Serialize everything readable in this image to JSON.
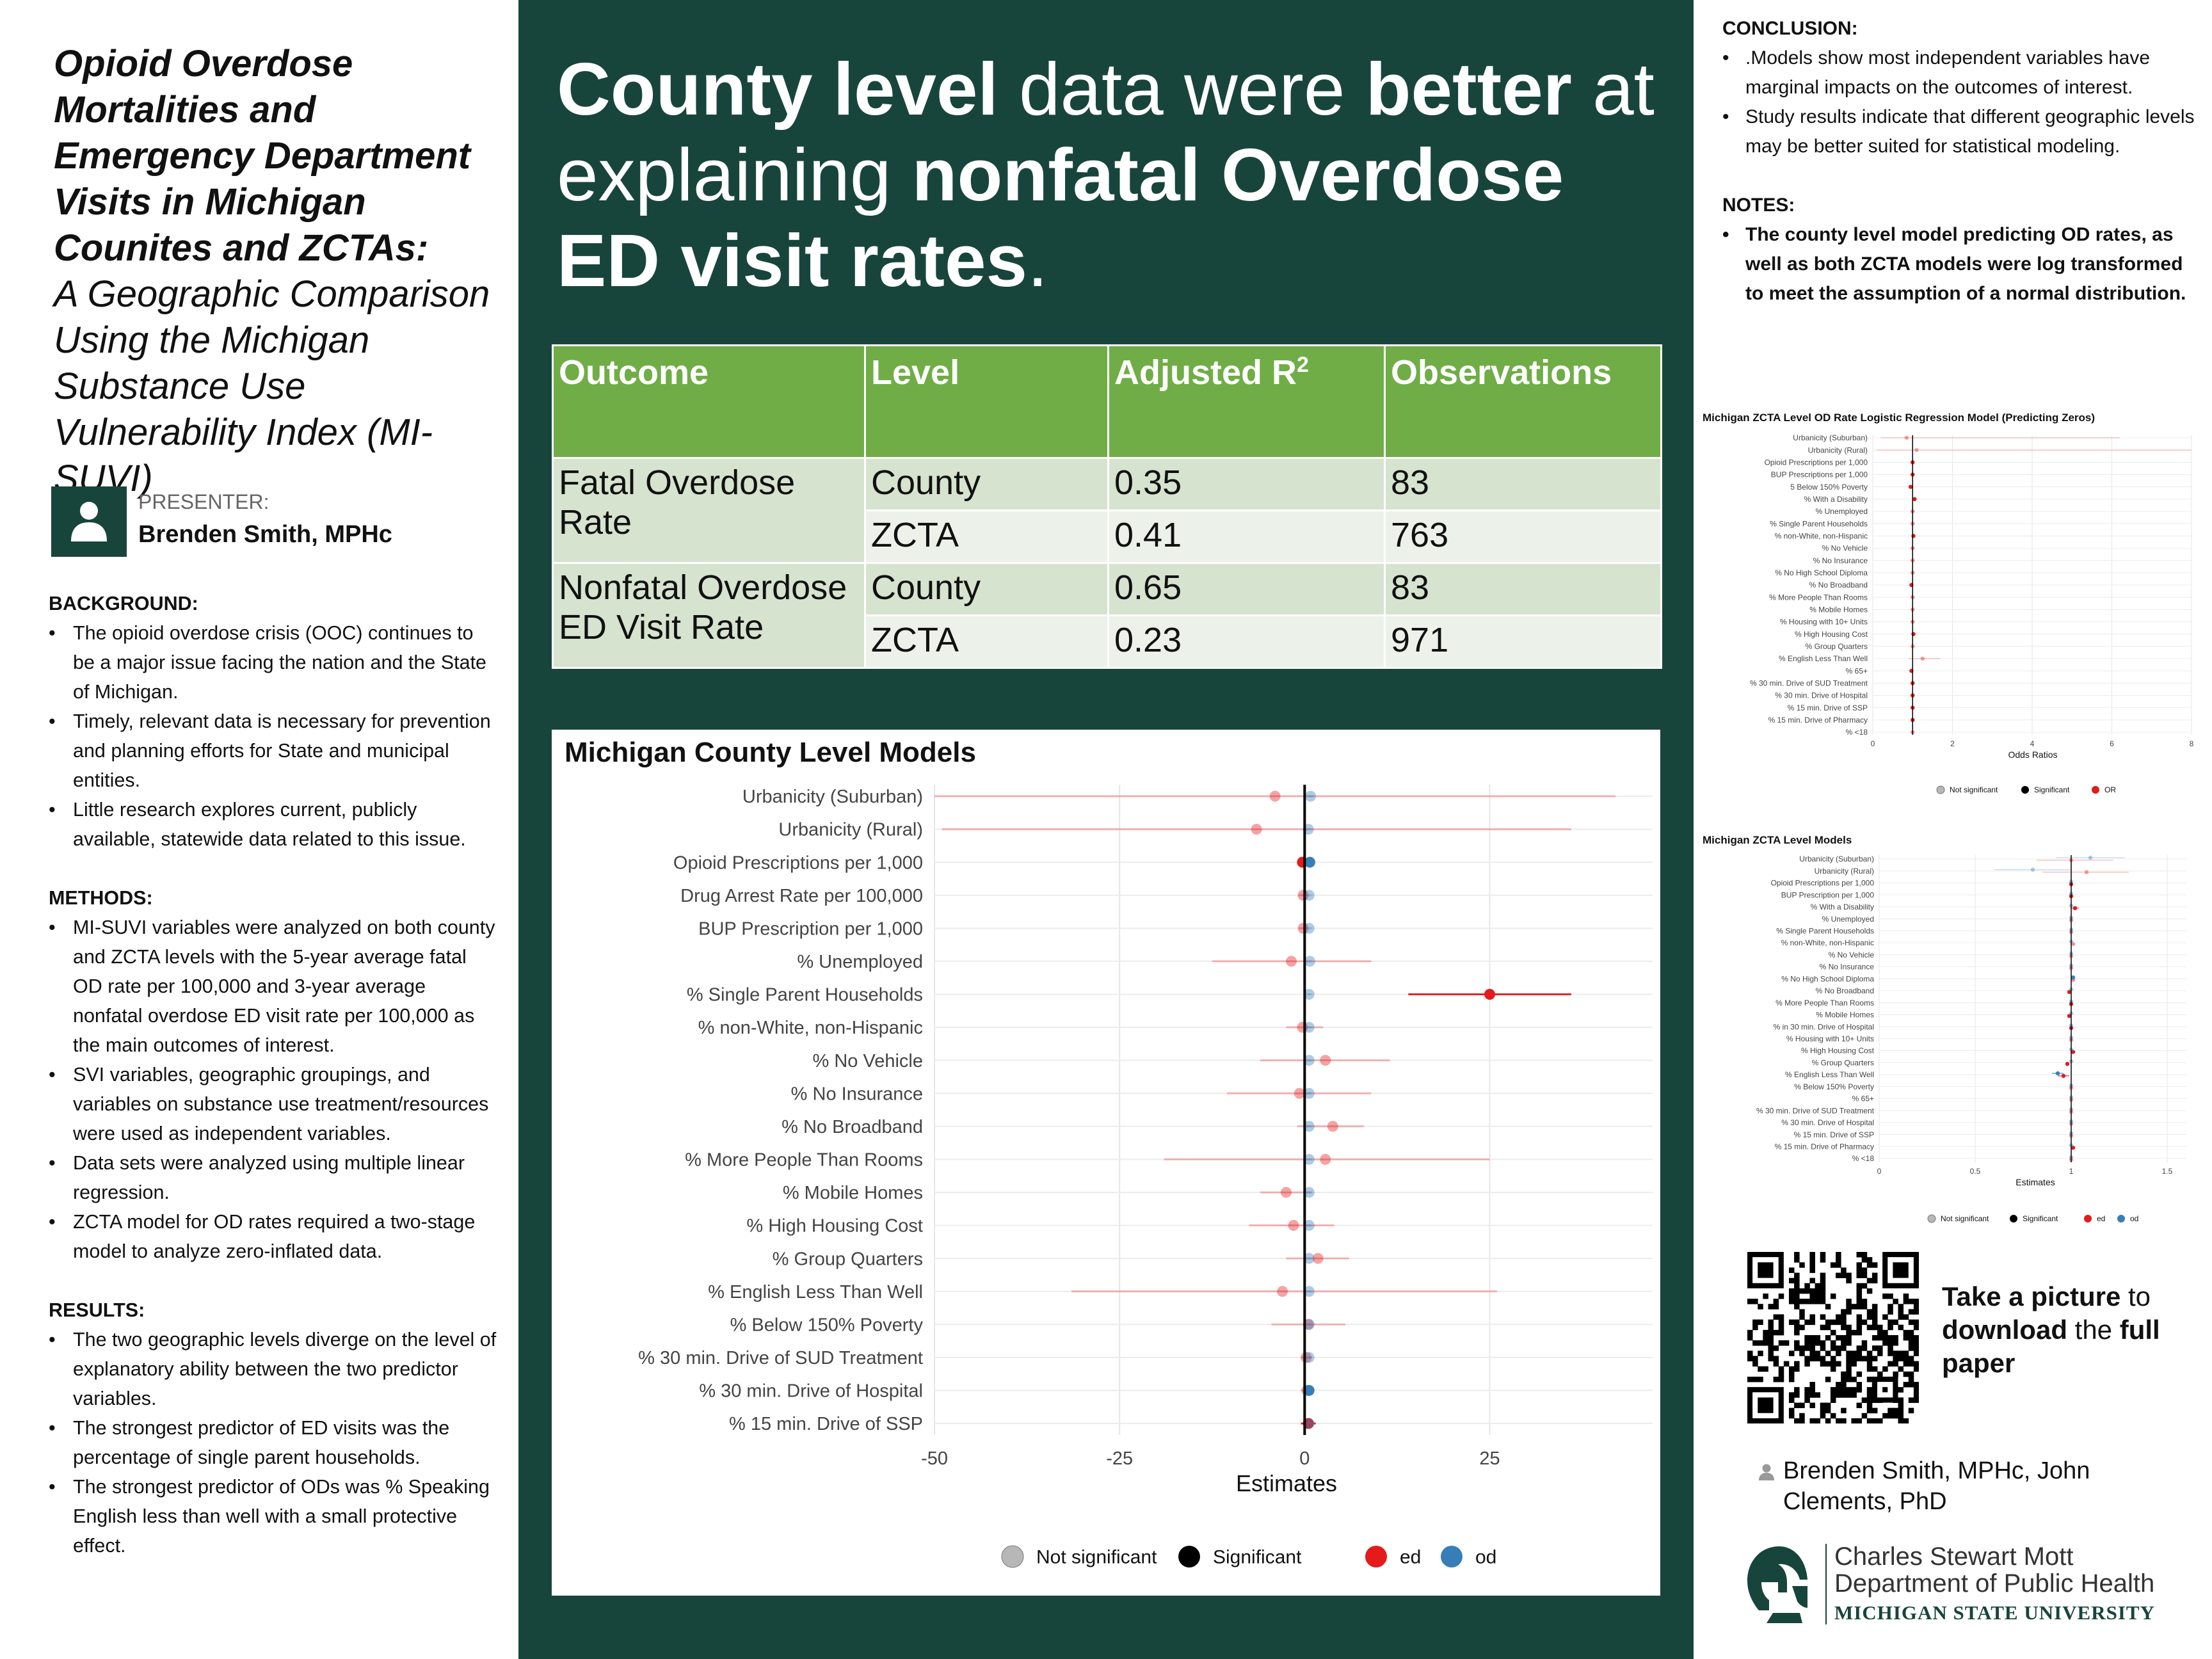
{
  "left": {
    "title_bold": "Opioid Overdose Mortalities and Emergency Department Visits in Michigan Counites and ZCTAs:",
    "title_sub": "A Geographic Comparison Using the Michigan Substance Use Vulnerability Index (MI-SUVI)",
    "presenter_label": "PRESENTER:",
    "presenter_name": "Brenden Smith, MPHc",
    "sections": [
      {
        "heading": "BACKGROUND:",
        "items": [
          "The opioid overdose crisis (OOC) continues to be a major issue facing the nation and the State of Michigan.",
          "Timely, relevant data is necessary for prevention and planning efforts for State and municipal entities.",
          "Little research explores current, publicly available, statewide data related to this issue."
        ]
      },
      {
        "heading": "METHODS:",
        "items": [
          "MI-SUVI variables were analyzed on both county and ZCTA levels with the 5-year average fatal OD rate per 100,000 and 3-year average nonfatal overdose ED visit rate per 100,000 as the main outcomes of interest.",
          "SVI variables, geographic groupings, and variables on substance use treatment/resources were used as independent variables.",
          "Data sets were analyzed using multiple linear regression.",
          "ZCTA model for OD rates required a two-stage model to analyze zero-inflated data."
        ]
      },
      {
        "heading": "RESULTS:",
        "items": [
          "The two geographic levels diverge on the level of explanatory ability between the two predictor variables.",
          "The strongest predictor of ED visits was the percentage of single parent households.",
          "The strongest predictor of ODs was % Speaking English less than well with a small protective effect."
        ]
      }
    ]
  },
  "middle": {
    "headline_parts": [
      {
        "text": "County level",
        "bold": true
      },
      {
        "text": " data were ",
        "bold": false
      },
      {
        "text": "better",
        "bold": true
      },
      {
        "text": " at explaining ",
        "bold": false
      },
      {
        "text": "nonfatal Overdose ED visit rates",
        "bold": true
      },
      {
        "text": ".",
        "bold": false
      }
    ],
    "table": {
      "headers": [
        "Outcome",
        "Level",
        "Adjusted R",
        "Observations"
      ],
      "r2_sup": "2",
      "groups": [
        {
          "outcome": "Fatal Overdose Rate",
          "rows": [
            [
              "County",
              "0.35",
              "83"
            ],
            [
              "ZCTA",
              "0.41",
              "763"
            ]
          ]
        },
        {
          "outcome": "Nonfatal Overdose ED Visit Rate",
          "rows": [
            [
              "County",
              "0.65",
              "83"
            ],
            [
              "ZCTA",
              "0.23",
              "971"
            ]
          ]
        }
      ]
    }
  },
  "right": {
    "conclusion_heading": "CONCLUSION:",
    "conclusion_items": [
      ".Models show most independent variables have marginal impacts on the outcomes of interest.",
      "Study results indicate that different geographic levels may be better suited for statistical modeling."
    ],
    "notes_heading": "NOTES:",
    "notes_items": [
      "The county level model predicting OD rates, as well as both ZCTA models were log transformed to meet the assumption of a normal distribution."
    ],
    "qr_text": [
      {
        "text": "Take a picture",
        "bold": true
      },
      {
        "text": " to ",
        "bold": false
      },
      {
        "text": "download",
        "bold": true
      },
      {
        "text": " the ",
        "bold": false
      },
      {
        "text": "full paper",
        "bold": true
      }
    ],
    "authors": "Brenden Smith, MPHc, John Clements, PhD",
    "logo_line1": "Charles Stewart Mott",
    "logo_line2": "Department of Public Health",
    "logo_line3": "MICHIGAN STATE UNIVERSITY"
  },
  "colors": {
    "msu_green": "#18453b",
    "table_header": "#70ad47",
    "ed": "#e41a1c",
    "od": "#377eb8"
  },
  "chart_data": [
    {
      "type": "scatter",
      "subtype": "coefficient-plot",
      "title": "Michigan County Level Models",
      "xlabel": "Estimates",
      "xlim": [
        -50,
        47
      ],
      "xticks": [
        -50,
        -25,
        0,
        25
      ],
      "legend": [
        "Not significant",
        "Significant",
        "ed",
        "od"
      ],
      "legend_position": "bottom",
      "grid": true,
      "categories": [
        "Urbanicity (Suburban)",
        "Urbanicity (Rural)",
        "Opioid Prescriptions per 1,000",
        "Drug Arrest Rate per 100,000",
        "BUP Prescription per 1,000",
        "% Unemployed",
        "% Single Parent Households",
        "% non-White, non-Hispanic",
        "% No Vehicle",
        "% No Insurance",
        "% No Broadband",
        "% More People Than Rooms",
        "% Mobile Homes",
        "% High Housing Cost",
        "% Group Quarters",
        "% English Less Than Well",
        "% Below 150% Poverty",
        "% 30 min. Drive of SUD Treatment",
        "% 30 min. Drive of Hospital",
        "% 15 min. Drive of SSP"
      ],
      "series": [
        {
          "name": "ed",
          "estimates": [
            -4,
            -6.5,
            -0.3,
            -0.2,
            -0.2,
            -1.8,
            25,
            -0.3,
            2.8,
            -0.7,
            3.8,
            2.8,
            -2.5,
            -1.5,
            1.8,
            -3,
            0.5,
            0.2,
            0.3,
            0.5
          ],
          "low": [
            -50,
            -49,
            -0.8,
            -0.8,
            -0.8,
            -12.5,
            14,
            -2.5,
            -6,
            -10.5,
            -1,
            -19,
            -6,
            -7.5,
            -2.5,
            -31.5,
            -4.5,
            -0.5,
            -0.5,
            -0.5
          ],
          "high": [
            42,
            36,
            0.4,
            0.4,
            0.4,
            9,
            36,
            2.5,
            11.5,
            9,
            8,
            25,
            1,
            4,
            6,
            26,
            5.5,
            1,
            1,
            1.5
          ],
          "significant": [
            false,
            false,
            true,
            false,
            false,
            false,
            true,
            false,
            false,
            false,
            false,
            false,
            false,
            false,
            false,
            false,
            false,
            false,
            false,
            true
          ]
        },
        {
          "name": "od",
          "estimates": [
            0.8,
            0.5,
            0.7,
            0.6,
            0.6,
            0.7,
            0.6,
            0.6,
            0.6,
            0.6,
            0.6,
            0.6,
            0.6,
            0.6,
            0.6,
            0.6,
            0.6,
            0.6,
            0.6,
            0.6
          ],
          "low": [
            0.4,
            0.1,
            0.5,
            0.3,
            0.3,
            0.3,
            0.3,
            0.3,
            0.3,
            0.3,
            0.3,
            0.3,
            0.3,
            0.3,
            0.3,
            0.3,
            0.3,
            0.3,
            0.3,
            0.3
          ],
          "high": [
            1.2,
            0.9,
            0.9,
            0.9,
            0.9,
            0.9,
            0.9,
            0.9,
            0.9,
            0.9,
            0.9,
            0.9,
            0.9,
            0.9,
            0.9,
            0.9,
            0.9,
            0.9,
            0.9,
            0.9
          ],
          "significant": [
            false,
            false,
            true,
            false,
            false,
            false,
            false,
            false,
            false,
            false,
            false,
            false,
            false,
            false,
            false,
            false,
            false,
            false,
            true,
            false
          ]
        }
      ]
    },
    {
      "type": "scatter",
      "subtype": "coefficient-plot",
      "title": "Michigan ZCTA Level OD Rate Logistic Regression Model (Predicting Zeros)",
      "xlabel": "Odds Ratios",
      "xlim": [
        0,
        8
      ],
      "xticks": [
        0,
        2,
        4,
        6,
        8
      ],
      "legend": [
        "Not significant",
        "Significant",
        "OR"
      ],
      "legend_position": "bottom",
      "categories": [
        "Urbanicity (Suburban)",
        "Urbanicity (Rural)",
        "Opioid Prescriptions per 1,000",
        "BUP Prescriptions per 1,000",
        "5 Below 150% Poverty",
        "% With a Disability",
        "% Unemployed",
        "% Single Parent Households",
        "% non-White, non-Hispanic",
        "% No Vehicle",
        "% No Insurance",
        "% No High School Diploma",
        "% No Broadband",
        "% More People Than Rooms",
        "% Mobile Homes",
        "% Housing with 10+ Units",
        "% High Housing Cost",
        "% Group Quarters",
        "% English Less Than Well",
        "% 65+",
        "% 30 min. Drive of SUD Treatment",
        "% 30 min. Drive of Hospital",
        "% 15 min. Drive of SSP",
        "% 15 min. Drive of Pharmacy",
        "% <18"
      ],
      "series": [
        {
          "name": "OR",
          "estimates": [
            0.85,
            1.1,
            1.0,
            1.0,
            0.95,
            1.05,
            1.0,
            1.0,
            1.02,
            1.0,
            1.0,
            1.0,
            0.97,
            1.0,
            1.0,
            1.0,
            1.02,
            1.0,
            1.25,
            0.97,
            1.0,
            1.0,
            1.0,
            1.0,
            1.0
          ],
          "low": [
            0.2,
            0.1,
            0.95,
            0.95,
            0.9,
            1.0,
            0.95,
            0.95,
            0.97,
            0.95,
            0.95,
            0.95,
            0.92,
            0.95,
            0.95,
            0.95,
            0.97,
            0.95,
            0.9,
            0.92,
            0.95,
            0.95,
            0.95,
            0.95,
            0.95
          ],
          "high": [
            6.2,
            8.0,
            1.05,
            1.05,
            1.0,
            1.1,
            1.05,
            1.05,
            1.07,
            1.05,
            1.05,
            1.05,
            1.02,
            1.05,
            1.05,
            1.05,
            1.07,
            1.05,
            1.7,
            1.02,
            1.05,
            1.05,
            1.05,
            1.05,
            1.05
          ],
          "significant": [
            false,
            false,
            true,
            true,
            true,
            true,
            false,
            false,
            true,
            false,
            false,
            false,
            true,
            false,
            false,
            false,
            true,
            false,
            false,
            true,
            true,
            true,
            true,
            true,
            false
          ]
        }
      ]
    },
    {
      "type": "scatter",
      "subtype": "coefficient-plot",
      "title": "Michigan ZCTA Level Models",
      "xlabel": "Estimates",
      "xlim": [
        0,
        1.6
      ],
      "xticks": [
        0.0,
        0.5,
        1.0,
        1.5
      ],
      "legend": [
        "Not significant",
        "Significant",
        "ed",
        "od"
      ],
      "legend_position": "bottom",
      "categories": [
        "Urbanicity (Suburban)",
        "Urbanicity (Rural)",
        "Opioid Prescriptions per 1,000",
        "BUP Prescription per 1,000",
        "% With a Disability",
        "% Unemployed",
        "% Single Parent Households",
        "% non-White, non-Hispanic",
        "% No Vehicle",
        "% No Insurance",
        "% No High School Diploma",
        "% No Broadband",
        "% More People Than Rooms",
        "% Mobile Homes",
        "% in 30 min. Drive of Hospital",
        "% Housing with 10+ Units",
        "% High Housing Cost",
        "% Group Quarters",
        "% English Less Than Well",
        "% Below 150% Poverty",
        "% 65+",
        "% 30 min. Drive of SUD Treatment",
        "% 30 min. Drive of Hospital",
        "% 15 min. Drive of SSP",
        "% 15 min. Drive of Pharmacy",
        "% <18"
      ],
      "series": [
        {
          "name": "ed",
          "estimates": [
            1.0,
            1.08,
            1.0,
            1.0,
            1.02,
            1.0,
            1.0,
            1.01,
            1.0,
            1.0,
            1.01,
            0.99,
            1.0,
            0.99,
            1.0,
            1.0,
            1.01,
            0.98,
            0.96,
            1.0,
            1.0,
            1.0,
            1.0,
            1.0,
            1.01,
            1.0
          ],
          "low": [
            0.82,
            0.85,
            0.99,
            0.99,
            1.0,
            0.99,
            0.99,
            1.0,
            0.99,
            0.99,
            1.0,
            0.98,
            0.99,
            0.98,
            0.99,
            0.99,
            1.0,
            0.97,
            0.93,
            0.99,
            0.99,
            0.99,
            0.99,
            0.99,
            1.0,
            0.99
          ],
          "high": [
            1.22,
            1.3,
            1.01,
            1.01,
            1.04,
            1.01,
            1.01,
            1.02,
            1.01,
            1.01,
            1.02,
            1.0,
            1.01,
            1.0,
            1.01,
            1.01,
            1.02,
            0.99,
            0.99,
            1.01,
            1.01,
            1.01,
            1.01,
            1.01,
            1.02,
            1.01
          ],
          "significant": [
            false,
            false,
            true,
            true,
            true,
            false,
            false,
            false,
            false,
            false,
            false,
            true,
            true,
            true,
            true,
            false,
            true,
            true,
            true,
            false,
            false,
            false,
            false,
            false,
            true,
            false
          ]
        },
        {
          "name": "od",
          "estimates": [
            1.1,
            0.8,
            1.0,
            1.0,
            1.0,
            1.0,
            1.0,
            1.0,
            1.0,
            1.0,
            1.01,
            1.0,
            1.0,
            1.0,
            1.0,
            1.0,
            1.0,
            1.0,
            0.93,
            1.0,
            1.0,
            1.0,
            1.0,
            1.0,
            1.0,
            1.0
          ],
          "low": [
            0.92,
            0.6,
            0.99,
            0.99,
            0.99,
            0.99,
            0.99,
            0.99,
            0.99,
            0.99,
            1.0,
            0.99,
            0.99,
            0.99,
            0.99,
            0.99,
            0.99,
            0.99,
            0.9,
            0.99,
            0.99,
            0.99,
            0.99,
            0.99,
            0.99,
            0.99
          ],
          "high": [
            1.28,
            1.0,
            1.01,
            1.01,
            1.01,
            1.01,
            1.01,
            1.01,
            1.01,
            1.01,
            1.02,
            1.01,
            1.01,
            1.01,
            1.01,
            1.01,
            1.01,
            1.01,
            0.96,
            1.01,
            1.01,
            1.01,
            1.01,
            1.01,
            1.01,
            1.01
          ],
          "significant": [
            false,
            false,
            false,
            false,
            false,
            false,
            false,
            false,
            false,
            false,
            true,
            false,
            false,
            false,
            false,
            false,
            false,
            false,
            true,
            false,
            false,
            false,
            false,
            false,
            false,
            false
          ]
        }
      ]
    }
  ]
}
